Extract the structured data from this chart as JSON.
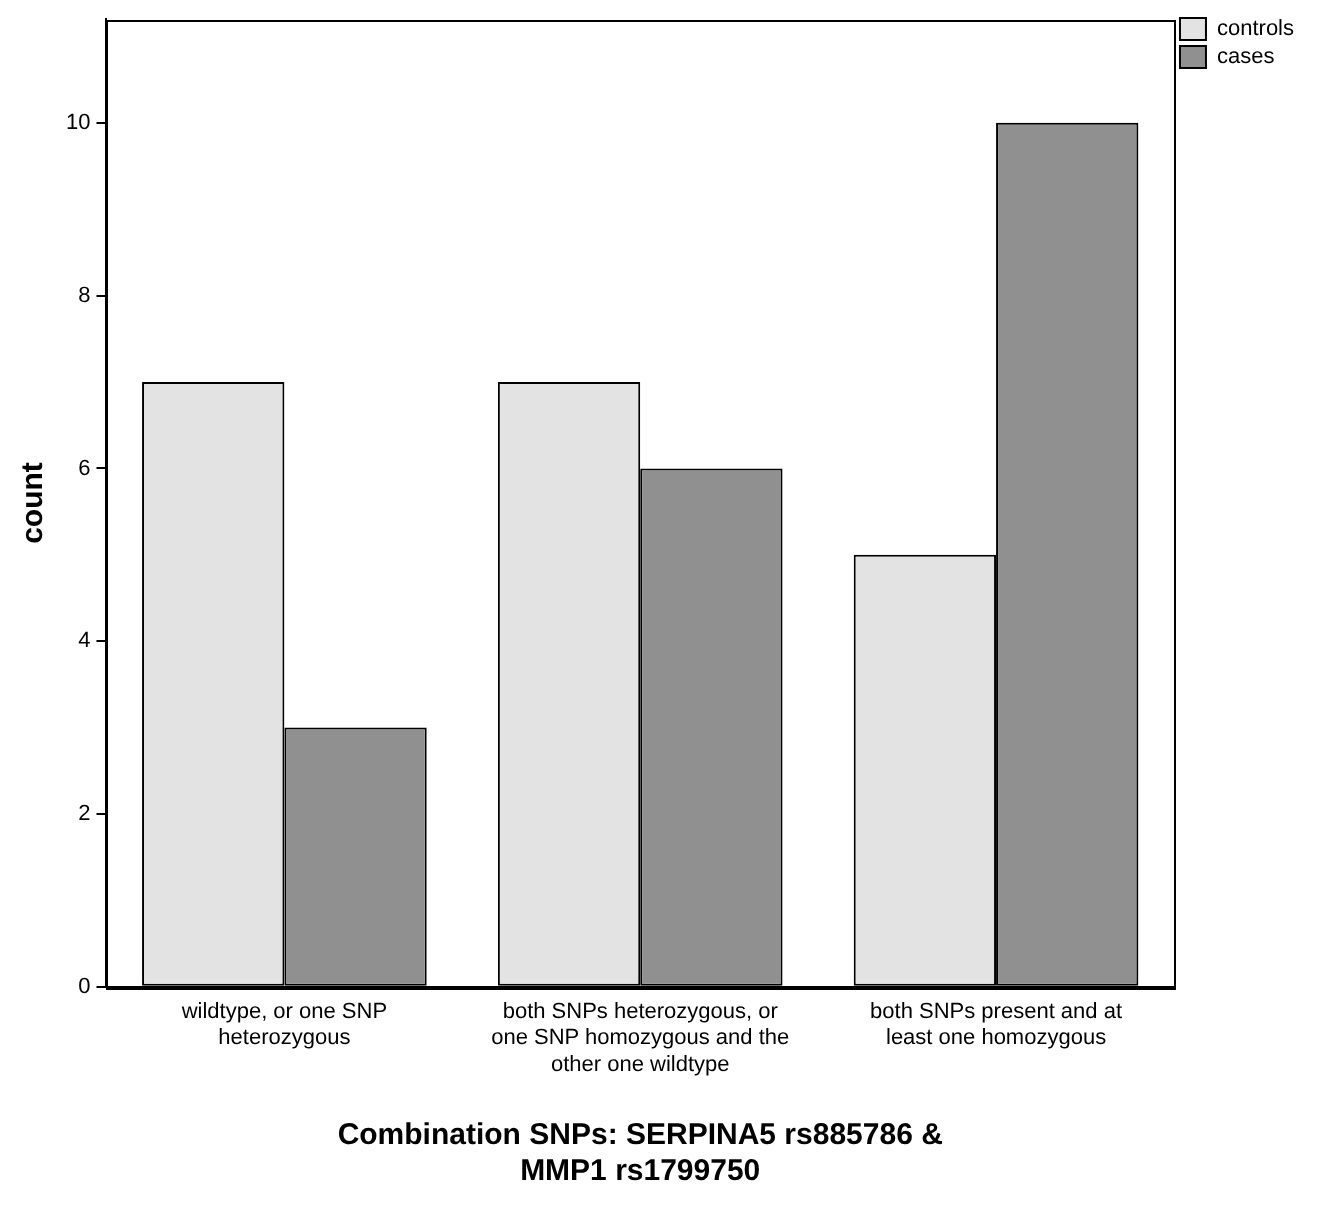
{
  "chart_data": {
    "type": "bar",
    "xlabel": "Combination SNPs: SERPINA5 rs885786 & MMP1 rs1799750",
    "ylabel": "count",
    "categories": [
      "wildtype, or one SNP heterozygous",
      "both SNPs heterozygous, or one SNP homozygous and the other one wildtype",
      "both SNPs present and at least one homozygous"
    ],
    "series": [
      {
        "name": "controls",
        "color": "#e3e3e3",
        "values": [
          7,
          7,
          5
        ]
      },
      {
        "name": "cases",
        "color": "#909090",
        "values": [
          3,
          6,
          10
        ]
      }
    ],
    "ylim": [
      0,
      11.2
    ],
    "yticks": [
      0,
      2,
      4,
      6,
      8,
      10
    ],
    "grid": false,
    "legend": "top right"
  }
}
